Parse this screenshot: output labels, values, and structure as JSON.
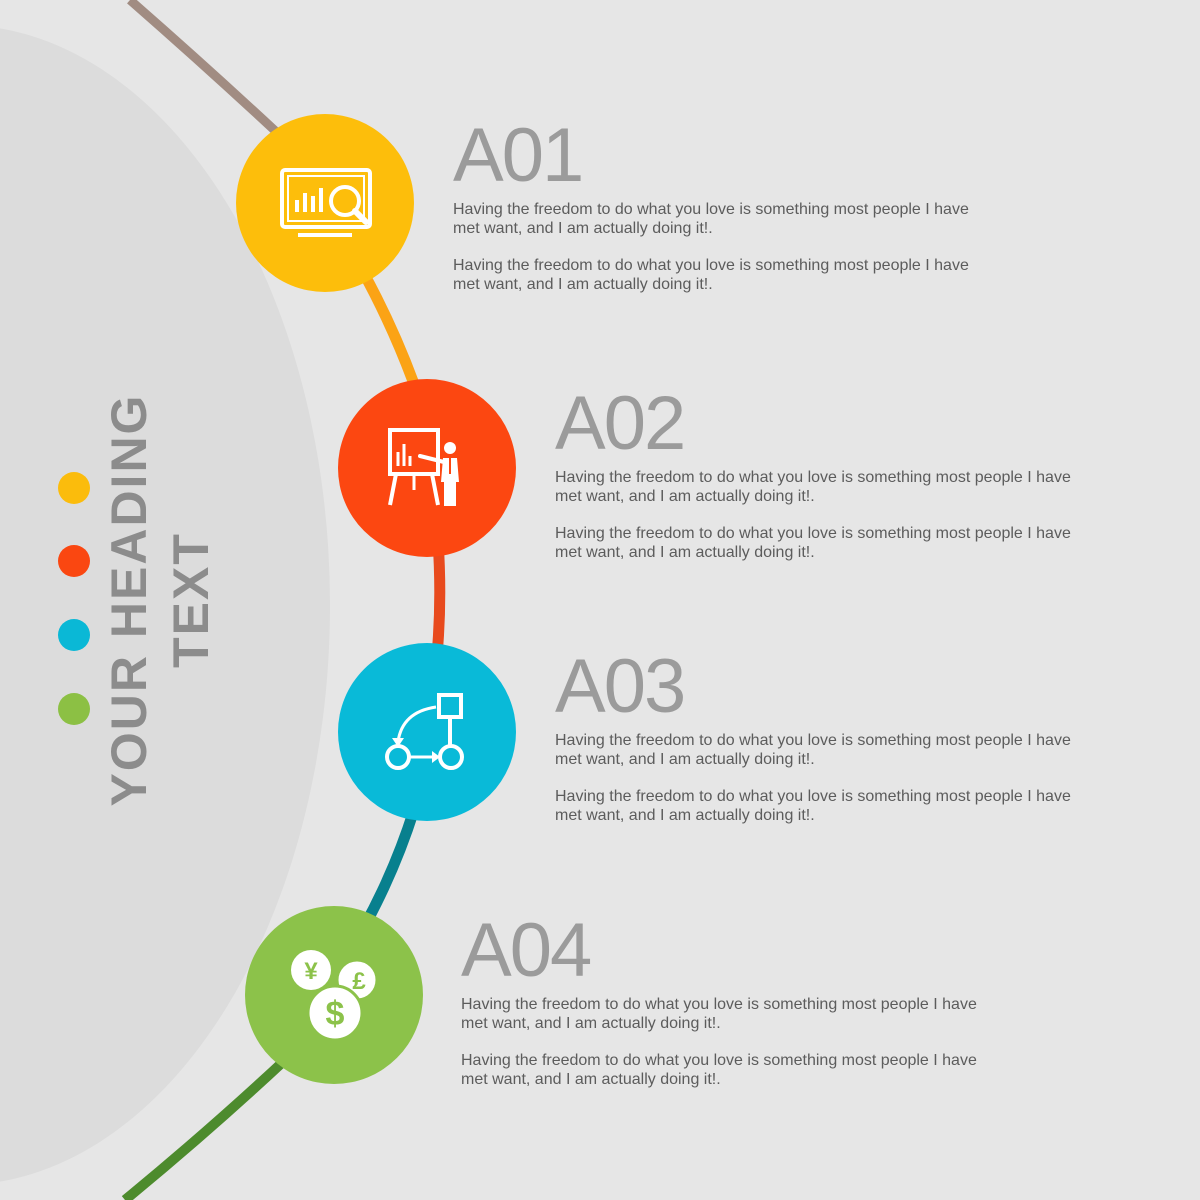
{
  "heading": {
    "line1": "YOUR HEADING",
    "line2": "TEXT"
  },
  "legend_dots": [
    {
      "color": "#fbbc0c"
    },
    {
      "color": "#fa4711"
    },
    {
      "color": "#0ab8d6"
    },
    {
      "color": "#8cc044"
    }
  ],
  "arc_colors": [
    "#a18c82",
    "#fba315",
    "#e84a1d",
    "#08808e",
    "#4d8b2d"
  ],
  "steps": [
    {
      "title": "A01",
      "icon": "monitor-chart-magnifier-icon",
      "color": "#fdbe0b",
      "paragraphs": [
        "Having the freedom to do what you love is something most people I have met want, and I am actually doing it!.",
        "Having the freedom to do what you love is something most people I have met want, and I am actually doing it!."
      ]
    },
    {
      "title": "A02",
      "icon": "presentation-board-icon",
      "color": "#fc4711",
      "paragraphs": [
        "Having the freedom to do what you love is something most people I have met want, and I am actually doing it!.",
        "Having the freedom to do what you love is something most people I have met want, and I am actually doing it!."
      ]
    },
    {
      "title": "A03",
      "icon": "workflow-icon",
      "color": "#09bad8",
      "paragraphs": [
        "Having the freedom to do what you love is something most people I have met want, and I am actually doing it!.",
        "Having the freedom to do what you love is something most people I have met want, and I am actually doing it!."
      ]
    },
    {
      "title": "A04",
      "icon": "currency-coins-icon",
      "color": "#8cc24a",
      "paragraphs": [
        "Having the freedom to do what you love is something most people I have met want, and I am actually doing it!.",
        "Having the freedom to do what you love is something most people I have met want, and I am actually doing it!."
      ]
    }
  ]
}
